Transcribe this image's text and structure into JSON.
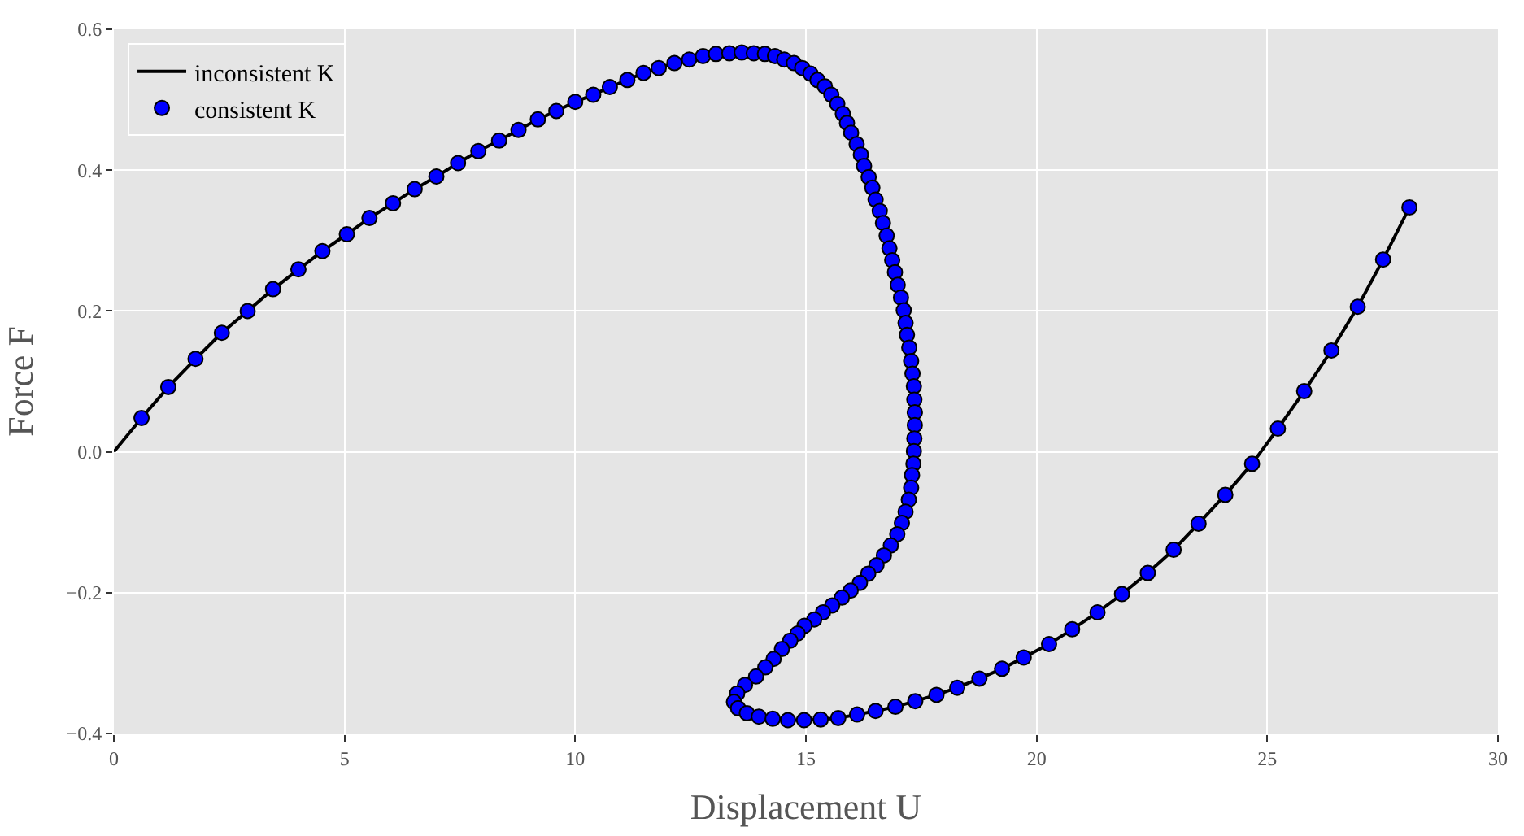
{
  "chart_data": {
    "type": "line",
    "xlabel": "Displacement U",
    "ylabel": "Force F",
    "xlim": [
      0,
      30
    ],
    "ylim": [
      -0.4,
      0.6
    ],
    "xticks": [
      0,
      5,
      10,
      15,
      20,
      25,
      30
    ],
    "yticks": [
      {
        "value": -0.4,
        "label": "−0.4"
      },
      {
        "value": -0.2,
        "label": "−0.2"
      },
      {
        "value": 0,
        "label": "0.0"
      },
      {
        "value": 0.2,
        "label": "0.2"
      },
      {
        "value": 0.4,
        "label": "0.4"
      },
      {
        "value": 0.6,
        "label": "0.6"
      }
    ],
    "grid": true,
    "legend": "top left",
    "series": [
      {
        "name": "inconsistent K",
        "color": "#000000",
        "marker": "none",
        "line_style": "solid",
        "x": [
          0,
          0.6,
          1.18,
          1.77,
          2.34,
          2.9,
          3.45,
          4.0,
          4.52,
          5.05,
          5.54,
          6.05,
          6.52,
          6.99,
          7.46,
          7.9,
          8.35,
          8.77,
          9.19,
          9.59,
          10.0,
          10.39,
          10.75,
          11.13,
          11.48,
          11.81,
          12.15,
          12.47,
          12.77,
          13.05,
          13.34,
          13.61,
          13.87,
          14.11,
          14.33,
          14.53,
          14.74,
          14.92,
          15.1,
          15.25,
          15.41,
          15.55,
          15.68,
          15.8,
          15.89,
          15.98,
          16.1,
          16.19,
          16.26,
          16.36,
          16.44,
          16.51,
          16.6,
          16.67,
          16.75,
          16.81,
          16.87,
          16.93,
          16.99,
          17.06,
          17.12,
          17.16,
          17.19,
          17.24,
          17.28,
          17.31,
          17.34,
          17.35,
          17.36,
          17.36,
          17.35,
          17.34,
          17.33,
          17.3,
          17.28,
          17.23,
          17.16,
          17.08,
          16.98,
          16.84,
          16.69,
          16.53,
          16.35,
          16.17,
          15.97,
          15.78,
          15.57,
          15.37,
          15.18,
          14.97,
          14.82,
          14.66,
          14.48,
          14.3,
          14.12,
          13.92,
          13.68,
          13.51,
          13.44,
          13.53,
          13.72,
          13.98,
          14.28,
          14.61,
          14.96,
          15.32,
          15.7,
          16.11,
          16.51,
          16.94,
          17.37,
          17.83,
          18.28,
          18.76,
          19.25,
          19.72,
          20.27,
          20.77,
          21.32,
          21.85,
          22.41,
          22.97,
          23.51,
          24.09,
          24.67,
          25.23,
          25.8,
          26.39,
          26.96,
          27.51,
          28.08
        ],
        "values": [
          0,
          0.048,
          0.092,
          0.132,
          0.169,
          0.2,
          0.231,
          0.259,
          0.285,
          0.309,
          0.332,
          0.353,
          0.373,
          0.391,
          0.41,
          0.427,
          0.442,
          0.457,
          0.472,
          0.484,
          0.497,
          0.507,
          0.518,
          0.528,
          0.538,
          0.545,
          0.552,
          0.557,
          0.562,
          0.565,
          0.566,
          0.567,
          0.566,
          0.565,
          0.562,
          0.557,
          0.552,
          0.545,
          0.537,
          0.528,
          0.519,
          0.507,
          0.494,
          0.48,
          0.467,
          0.453,
          0.437,
          0.422,
          0.406,
          0.39,
          0.375,
          0.358,
          0.342,
          0.325,
          0.307,
          0.289,
          0.272,
          0.255,
          0.237,
          0.219,
          0.201,
          0.183,
          0.166,
          0.148,
          0.129,
          0.111,
          0.093,
          0.074,
          0.056,
          0.038,
          0.019,
          0.001,
          -0.017,
          -0.033,
          -0.051,
          -0.068,
          -0.085,
          -0.101,
          -0.117,
          -0.133,
          -0.147,
          -0.161,
          -0.173,
          -0.186,
          -0.197,
          -0.207,
          -0.218,
          -0.228,
          -0.238,
          -0.247,
          -0.258,
          -0.268,
          -0.28,
          -0.294,
          -0.306,
          -0.319,
          -0.331,
          -0.343,
          -0.355,
          -0.364,
          -0.371,
          -0.376,
          -0.379,
          -0.381,
          -0.381,
          -0.38,
          -0.378,
          -0.373,
          -0.368,
          -0.362,
          -0.354,
          -0.345,
          -0.335,
          -0.322,
          -0.308,
          -0.292,
          -0.273,
          -0.252,
          -0.228,
          -0.202,
          -0.172,
          -0.139,
          -0.102,
          -0.061,
          -0.017,
          0.033,
          0.086,
          0.144,
          0.206,
          0.273,
          0.347
        ]
      },
      {
        "name": "consistent K",
        "type": "scatter",
        "color": "#0000ff",
        "marker": "circle",
        "x": [
          0.6,
          1.18,
          1.77,
          2.34,
          2.9,
          3.45,
          4.0,
          4.52,
          5.05,
          5.54,
          6.05,
          6.52,
          6.99,
          7.46,
          7.9,
          8.35,
          8.77,
          9.19,
          9.59,
          10.0,
          10.39,
          10.75,
          11.13,
          11.48,
          11.81,
          12.15,
          12.47,
          12.77,
          13.05,
          13.34,
          13.61,
          13.87,
          14.11,
          14.33,
          14.53,
          14.74,
          14.92,
          15.1,
          15.25,
          15.41,
          15.55,
          15.68,
          15.8,
          15.89,
          15.98,
          16.1,
          16.19,
          16.26,
          16.36,
          16.44,
          16.51,
          16.6,
          16.67,
          16.75,
          16.81,
          16.87,
          16.93,
          16.99,
          17.06,
          17.12,
          17.16,
          17.19,
          17.24,
          17.28,
          17.31,
          17.34,
          17.35,
          17.36,
          17.36,
          17.35,
          17.34,
          17.33,
          17.3,
          17.28,
          17.23,
          17.16,
          17.08,
          16.98,
          16.84,
          16.69,
          16.53,
          16.35,
          16.17,
          15.97,
          15.78,
          15.57,
          15.37,
          15.18,
          14.97,
          14.82,
          14.66,
          14.48,
          14.3,
          14.12,
          13.92,
          13.68,
          13.51,
          13.44,
          13.53,
          13.72,
          13.98,
          14.28,
          14.61,
          14.96,
          15.32,
          15.7,
          16.11,
          16.51,
          16.94,
          17.37,
          17.83,
          18.28,
          18.76,
          19.25,
          19.72,
          20.27,
          20.77,
          21.32,
          21.85,
          22.41,
          22.97,
          23.51,
          24.09,
          24.67,
          25.23,
          25.8,
          26.39,
          26.96,
          27.51,
          28.08
        ],
        "values": [
          0.048,
          0.092,
          0.132,
          0.169,
          0.2,
          0.231,
          0.259,
          0.285,
          0.309,
          0.332,
          0.353,
          0.373,
          0.391,
          0.41,
          0.427,
          0.442,
          0.457,
          0.472,
          0.484,
          0.497,
          0.507,
          0.518,
          0.528,
          0.538,
          0.545,
          0.552,
          0.557,
          0.562,
          0.565,
          0.566,
          0.567,
          0.566,
          0.565,
          0.562,
          0.557,
          0.552,
          0.545,
          0.537,
          0.528,
          0.519,
          0.507,
          0.494,
          0.48,
          0.467,
          0.453,
          0.437,
          0.422,
          0.406,
          0.39,
          0.375,
          0.358,
          0.342,
          0.325,
          0.307,
          0.289,
          0.272,
          0.255,
          0.237,
          0.219,
          0.201,
          0.183,
          0.166,
          0.148,
          0.129,
          0.111,
          0.093,
          0.074,
          0.056,
          0.038,
          0.019,
          0.001,
          -0.017,
          -0.033,
          -0.051,
          -0.068,
          -0.085,
          -0.101,
          -0.117,
          -0.133,
          -0.147,
          -0.161,
          -0.173,
          -0.186,
          -0.197,
          -0.207,
          -0.218,
          -0.228,
          -0.238,
          -0.247,
          -0.258,
          -0.268,
          -0.28,
          -0.294,
          -0.306,
          -0.319,
          -0.331,
          -0.343,
          -0.355,
          -0.364,
          -0.371,
          -0.376,
          -0.379,
          -0.381,
          -0.381,
          -0.38,
          -0.378,
          -0.373,
          -0.368,
          -0.362,
          -0.354,
          -0.345,
          -0.335,
          -0.322,
          -0.308,
          -0.292,
          -0.273,
          -0.252,
          -0.228,
          -0.202,
          -0.172,
          -0.139,
          -0.102,
          -0.061,
          -0.017,
          0.033,
          0.086,
          0.144,
          0.206,
          0.273,
          0.347
        ]
      }
    ]
  }
}
